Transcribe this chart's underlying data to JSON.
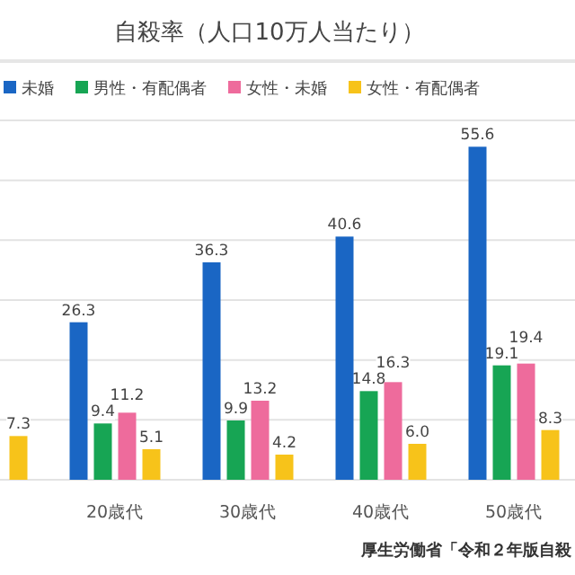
{
  "chart_data": {
    "type": "bar",
    "title": "自殺率（人口10万人当たり）",
    "categories": [
      null,
      "20歳代",
      "30歳代",
      "40歳代",
      "50歳代"
    ],
    "series": [
      {
        "name": "未婚",
        "color": "#1a66c4",
        "values": [
          null,
          26.3,
          36.3,
          40.6,
          55.6
        ],
        "value_labels": [
          null,
          "26.3",
          "36.3",
          "40.6",
          "55.6"
        ]
      },
      {
        "name": "男性・有配偶者",
        "color": "#17a554",
        "values": [
          null,
          9.4,
          9.9,
          14.8,
          19.1
        ],
        "value_labels": [
          null,
          "9.4",
          "9.9",
          "14.8",
          "19.1"
        ]
      },
      {
        "name": "女性・未婚",
        "color": "#ee6b9c",
        "values": [
          null,
          11.2,
          13.2,
          16.3,
          19.4
        ],
        "value_labels": [
          null,
          "11.2",
          "13.2",
          "16.3",
          "19.4"
        ]
      },
      {
        "name": "女性・有配偶者",
        "color": "#f7c31a",
        "values": [
          7.3,
          5.1,
          4.2,
          6.0,
          8.3
        ],
        "value_labels": [
          "7.3",
          "5.1",
          "4.2",
          "6.0",
          "8.3"
        ]
      }
    ],
    "ylim": [
      0,
      60
    ],
    "yticks": [
      {
        "value": 0,
        "label": null
      },
      {
        "value": 10,
        "label": null
      },
      {
        "value": 20,
        "label": null
      },
      {
        "value": 30,
        "label": null
      },
      {
        "value": 40,
        "label": null
      },
      {
        "value": 50,
        "label": null
      },
      {
        "value": 60,
        "label": null
      }
    ],
    "grid": "y",
    "legend": "top",
    "annotations": [
      "厚生労働省「令和２年版自殺"
    ]
  }
}
